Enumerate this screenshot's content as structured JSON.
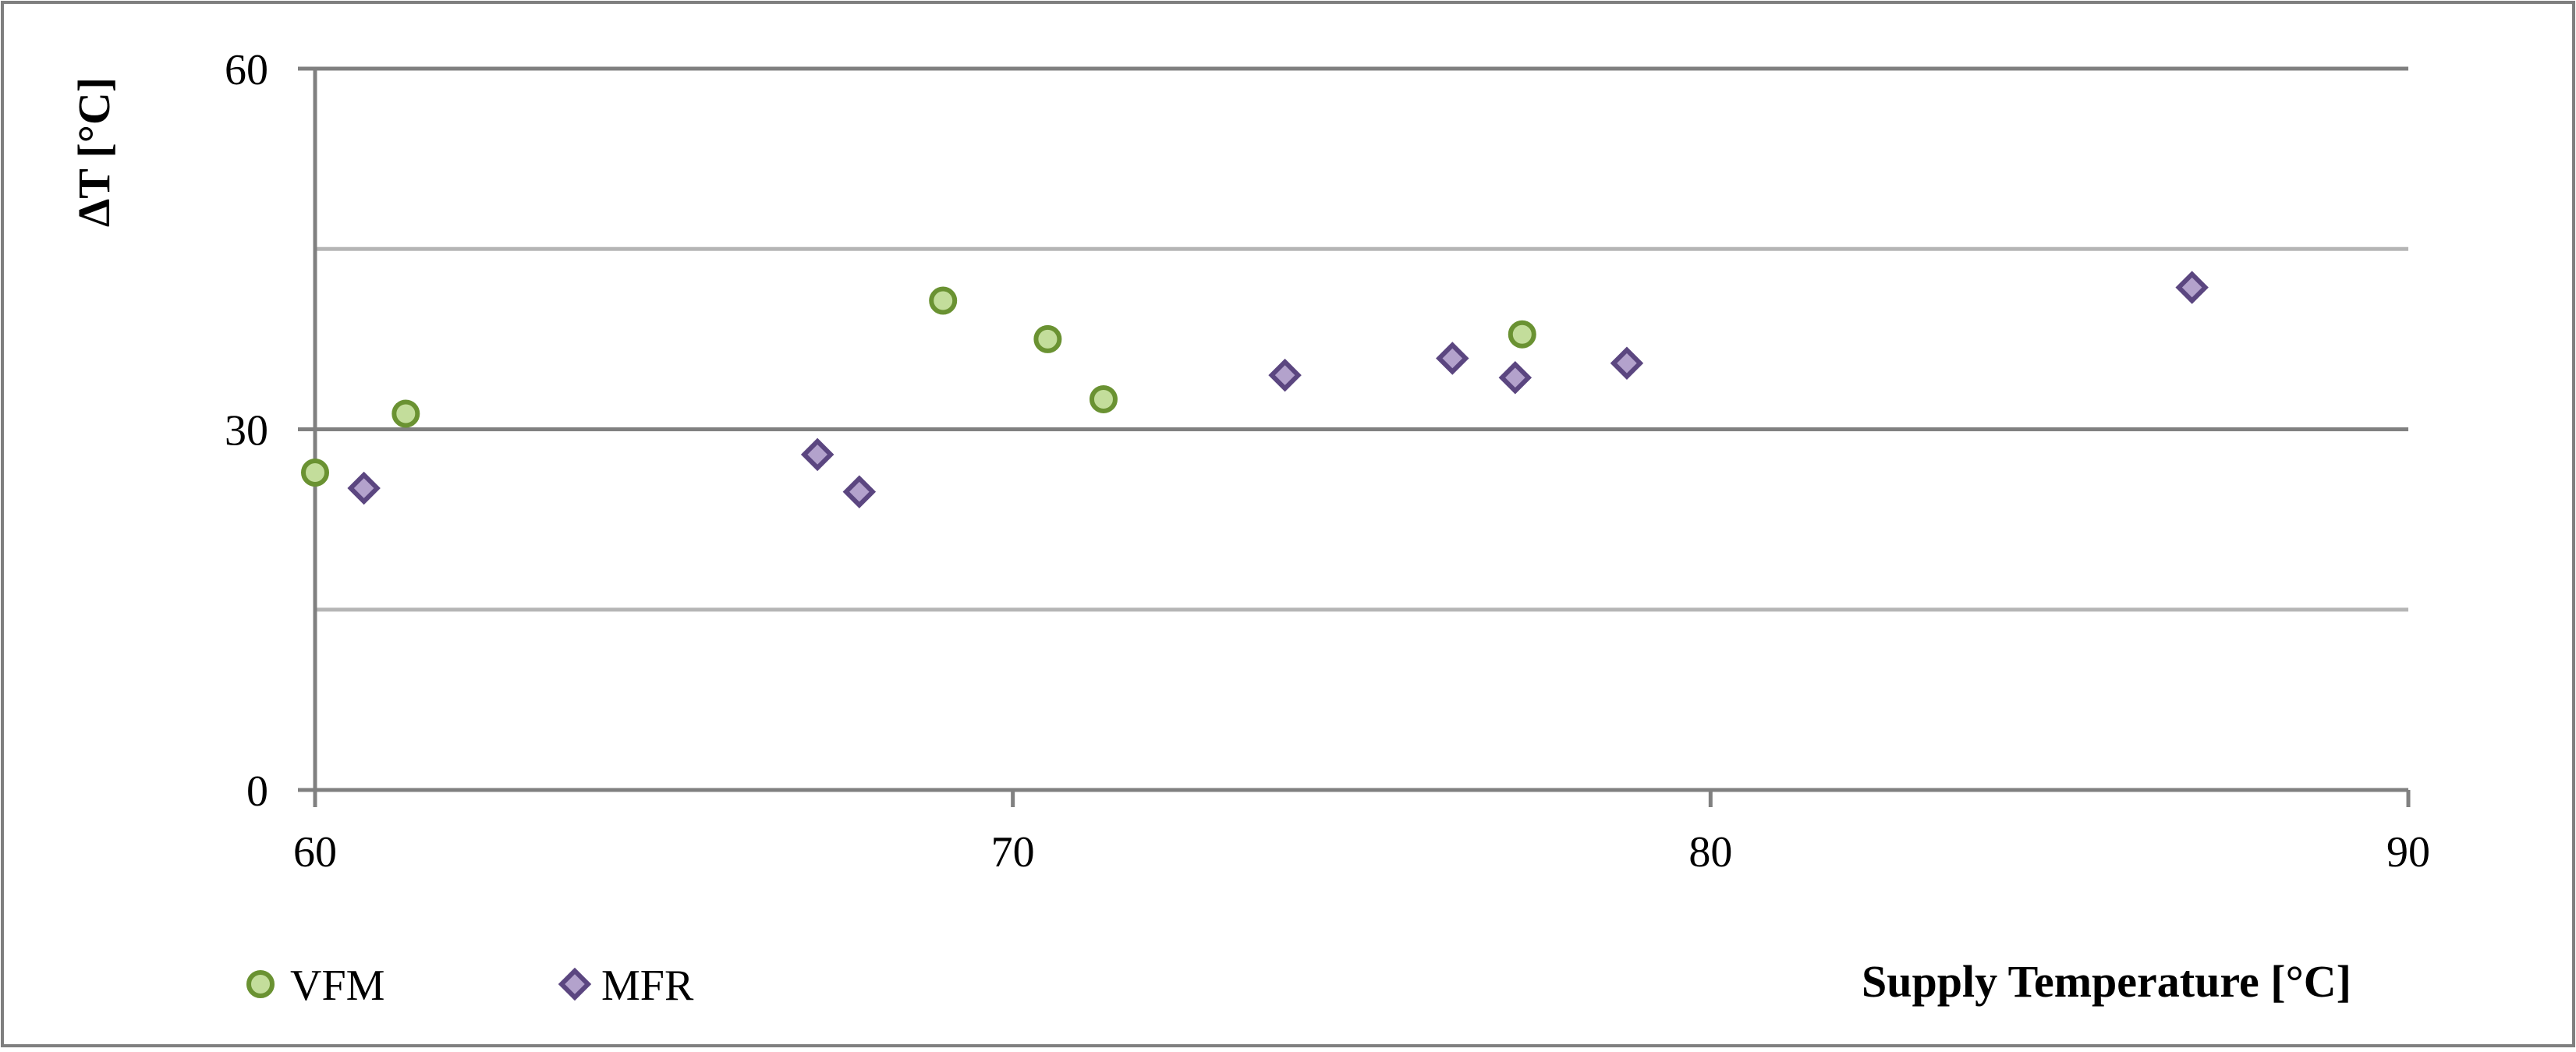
{
  "colors": {
    "vfm_fill": "#c3dd9b",
    "vfm_stroke": "#6a9232",
    "mfr_fill": "#b3a2cc",
    "mfr_stroke": "#5b4680",
    "major_grid": "#808080",
    "minor_grid": "#b5b5b5",
    "frame": "#7f7f7f"
  },
  "chart_data": {
    "type": "scatter",
    "title": "",
    "xlabel": "Supply Temperature [°C]",
    "ylabel": "ΔT [°C]",
    "xlim": [
      60,
      90
    ],
    "ylim": [
      0,
      60
    ],
    "x_ticks": [
      "60",
      "70",
      "80",
      "90"
    ],
    "y_ticks": [
      "0",
      "30",
      "60"
    ],
    "grid": true,
    "legend_position": "bottom-left",
    "series": [
      {
        "name": "VFM",
        "marker": "circle",
        "points": [
          {
            "x": 60.0,
            "y": 26.4
          },
          {
            "x": 61.3,
            "y": 31.3
          },
          {
            "x": 69.0,
            "y": 40.7
          },
          {
            "x": 70.5,
            "y": 37.5
          },
          {
            "x": 71.3,
            "y": 32.5
          },
          {
            "x": 77.3,
            "y": 37.9
          }
        ]
      },
      {
        "name": "MFR",
        "marker": "diamond",
        "points": [
          {
            "x": 60.7,
            "y": 25.1
          },
          {
            "x": 67.2,
            "y": 27.9
          },
          {
            "x": 67.8,
            "y": 24.8
          },
          {
            "x": 73.9,
            "y": 34.5
          },
          {
            "x": 76.3,
            "y": 35.9
          },
          {
            "x": 77.2,
            "y": 34.3
          },
          {
            "x": 78.8,
            "y": 35.5
          },
          {
            "x": 86.9,
            "y": 41.8
          }
        ]
      }
    ]
  }
}
